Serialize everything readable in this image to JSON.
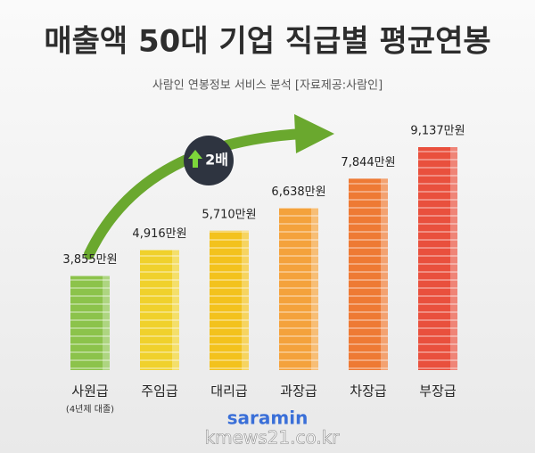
{
  "chart_data": {
    "type": "bar",
    "title": "매출액 50대 기업 직급별 평균연봉",
    "subtitle": "사람인 연봉정보 서비스 분석 [자료제공:사람인]",
    "categories": [
      "사원급",
      "주임급",
      "대리급",
      "과장급",
      "차장급",
      "부장급"
    ],
    "category_note": "(4년제 대졸)",
    "values": [
      3855,
      4916,
      5710,
      6638,
      7844,
      9137
    ],
    "value_labels": [
      "3,855만원",
      "4,916만원",
      "5,710만원",
      "6,638만원",
      "7,844만원",
      "9,137만원"
    ],
    "colors": [
      "#8cc34b",
      "#f0d12c",
      "#f3c21d",
      "#f4a23c",
      "#ee7a34",
      "#e9503d"
    ],
    "annotation": "2배",
    "logo": "saramin",
    "watermark": "kmews21.co.kr"
  }
}
